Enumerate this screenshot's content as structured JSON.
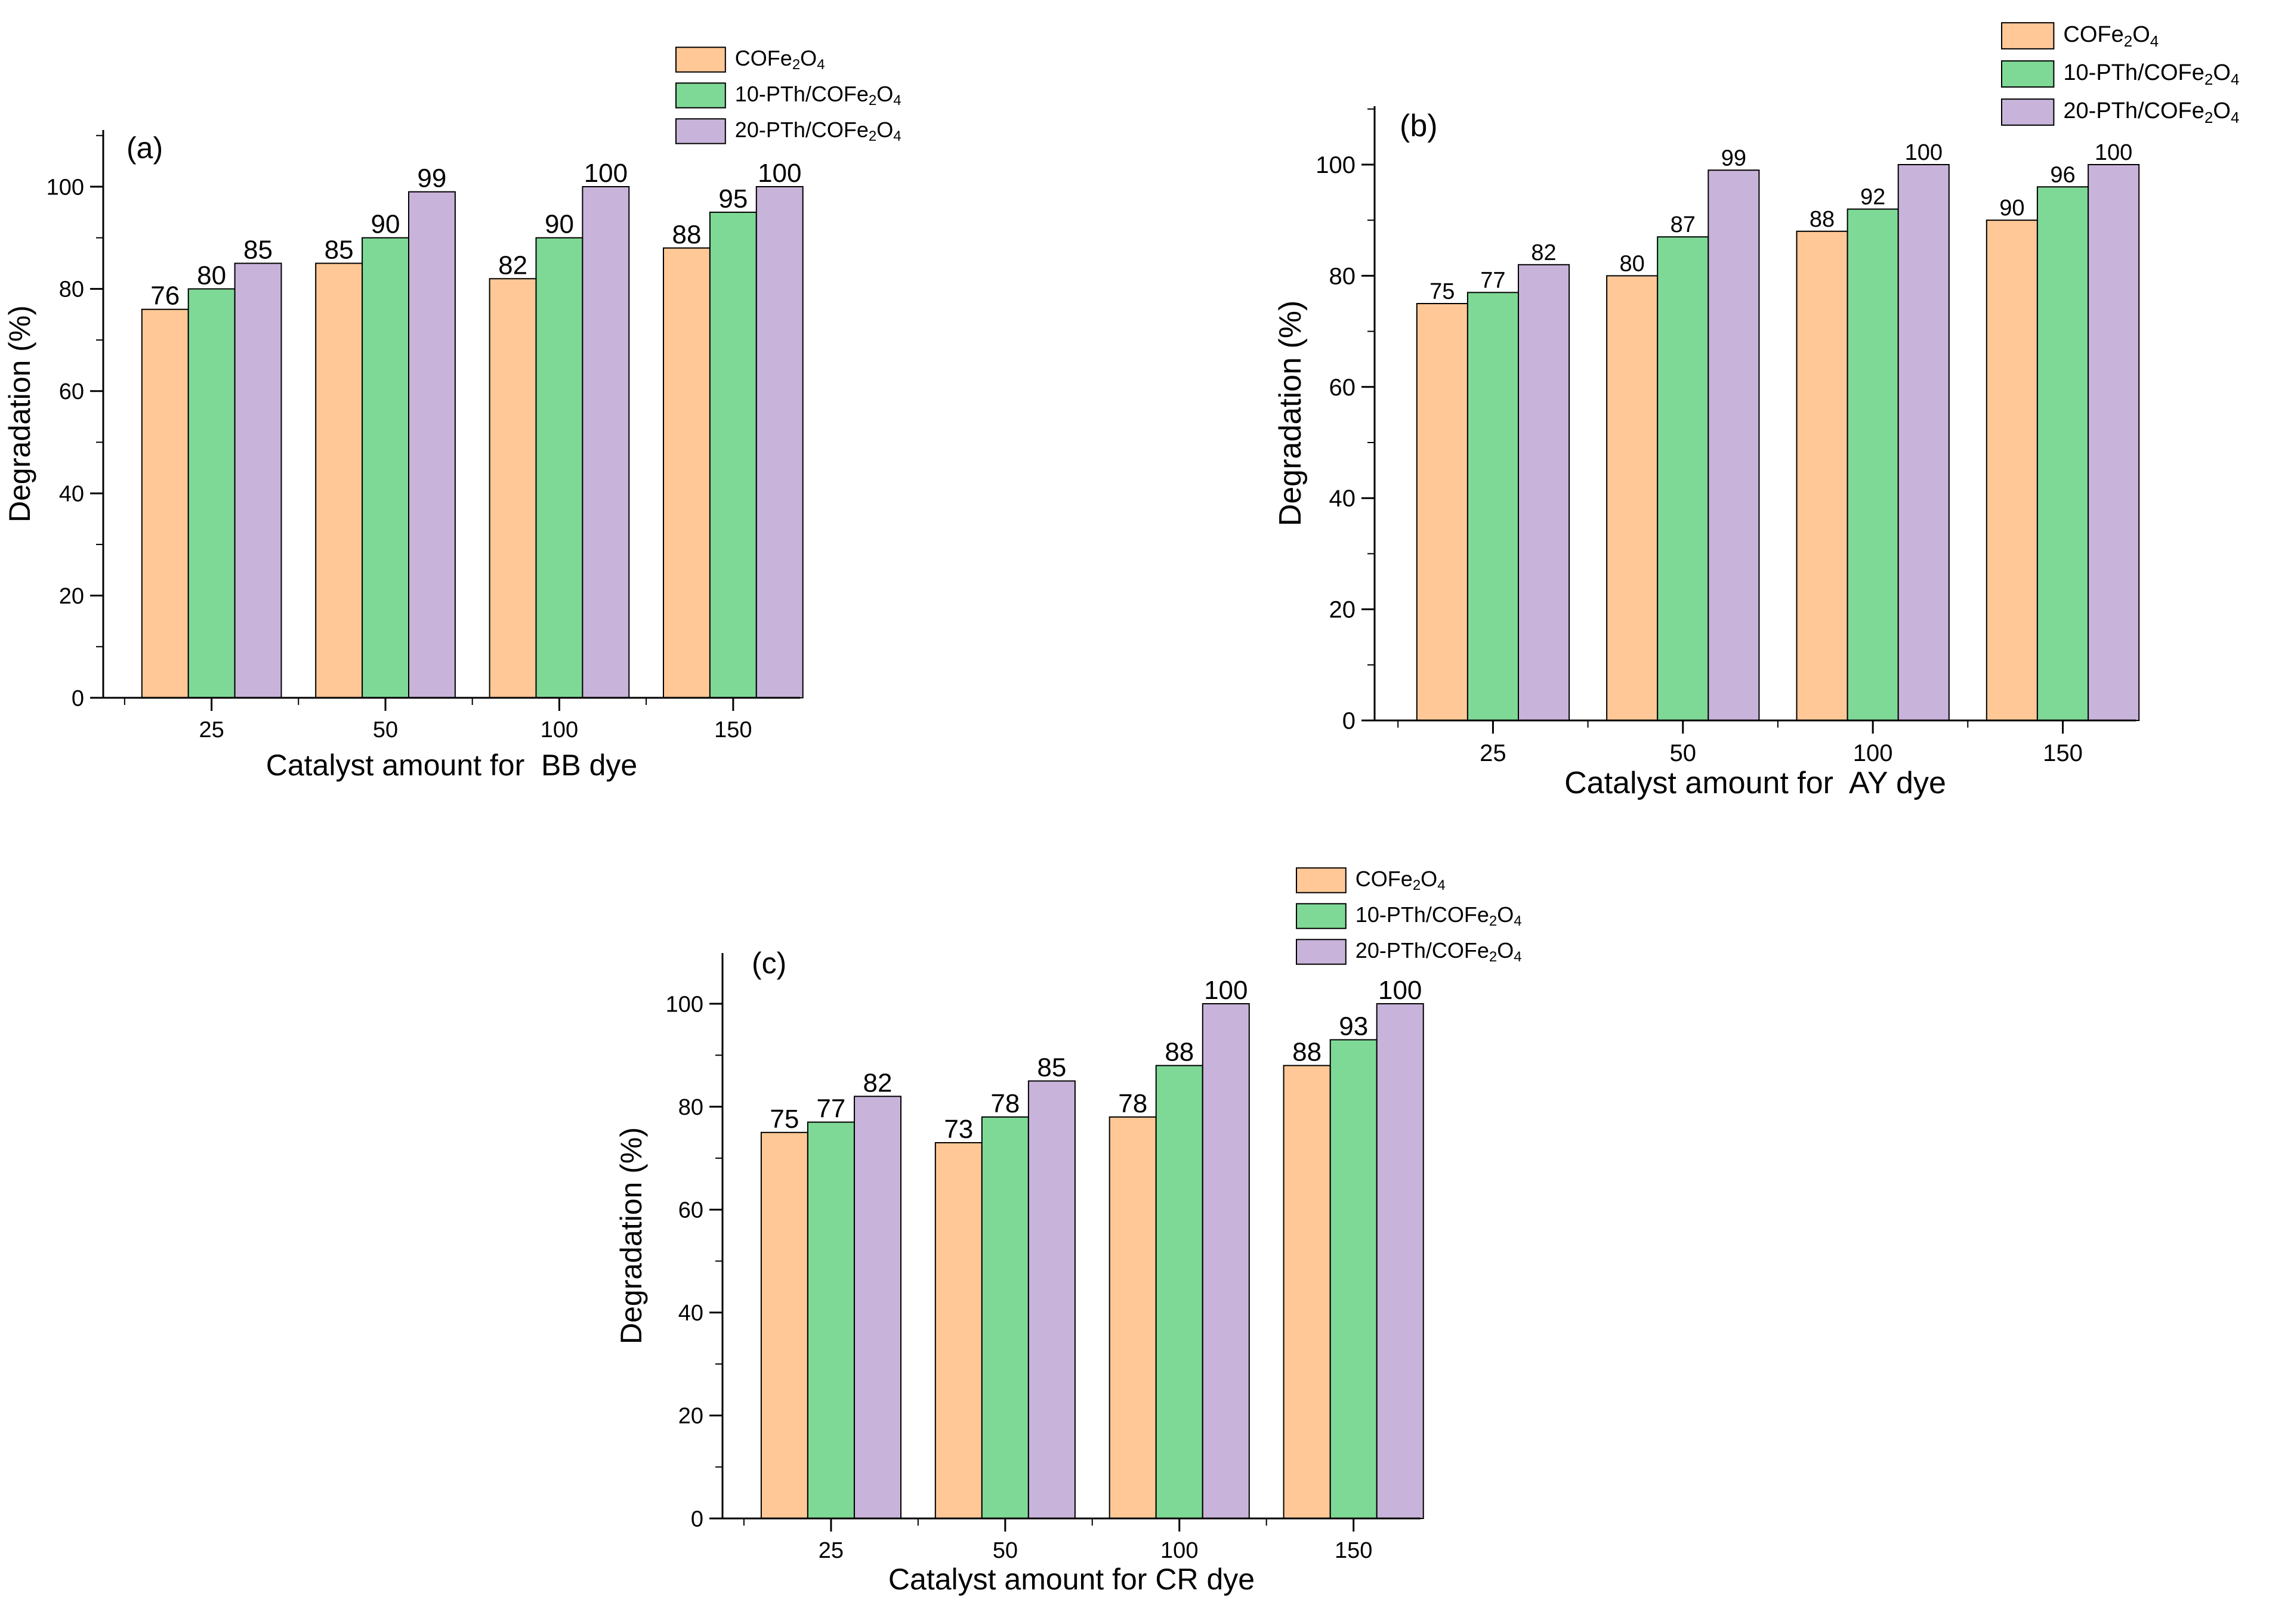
{
  "colors": {
    "series_fill": [
      "#FFC896",
      "#7FD996",
      "#C8B4DA"
    ],
    "stroke": "#000000",
    "background": "#FFFFFF"
  },
  "chart_data": [
    {
      "type": "bar",
      "panel_label": "(a)",
      "title": "",
      "xlabel": "Catalyst amount for  BB dye",
      "ylabel": "Degradation (%)",
      "categories": [
        "25",
        "50",
        "100",
        "150"
      ],
      "ylim": [
        0,
        110
      ],
      "yticks": [
        0,
        20,
        40,
        60,
        80,
        100
      ],
      "grid": false,
      "legend_position": "top-right, above plot",
      "series": [
        {
          "name": "COFe2O4",
          "values": [
            76,
            85,
            82,
            88
          ]
        },
        {
          "name": "10-PTh/COFe2O4",
          "values": [
            80,
            90,
            90,
            95
          ]
        },
        {
          "name": "20-PTh/COFe2O4",
          "values": [
            85,
            99,
            100,
            100
          ]
        }
      ]
    },
    {
      "type": "bar",
      "panel_label": "(b)",
      "title": "",
      "xlabel": "Catalyst amount for  AY dye",
      "ylabel": "Degradation (%)",
      "categories": [
        "25",
        "50",
        "100",
        "150"
      ],
      "ylim": [
        0,
        110
      ],
      "yticks": [
        0,
        20,
        40,
        60,
        80,
        100
      ],
      "grid": false,
      "legend_position": "top-right, above plot",
      "series": [
        {
          "name": "COFe2O4",
          "values": [
            75,
            80,
            88,
            90
          ]
        },
        {
          "name": "10-PTh/COFe2O4",
          "values": [
            77,
            87,
            92,
            96
          ]
        },
        {
          "name": "20-PTh/COFe2O4",
          "values": [
            82,
            99,
            100,
            100
          ]
        }
      ]
    },
    {
      "type": "bar",
      "panel_label": "(c)",
      "title": "",
      "xlabel": "Catalyst amount for CR dye",
      "ylabel": "Degradation (%)",
      "categories": [
        "25",
        "50",
        "100",
        "150"
      ],
      "ylim": [
        0,
        110
      ],
      "yticks": [
        0,
        20,
        40,
        60,
        80,
        100
      ],
      "grid": false,
      "legend_position": "top-right, above plot",
      "series": [
        {
          "name": "COFe2O4",
          "values": [
            75,
            73,
            78,
            88
          ]
        },
        {
          "name": "10-PTh/COFe2O4",
          "values": [
            77,
            78,
            88,
            93
          ]
        },
        {
          "name": "20-PTh/COFe2O4",
          "values": [
            82,
            85,
            100,
            100
          ]
        }
      ]
    }
  ]
}
